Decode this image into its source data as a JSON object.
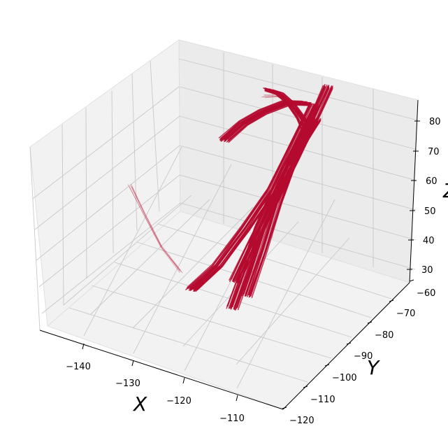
{
  "chart_data": {
    "type": "3d-line",
    "title": "",
    "xlabel": "X",
    "ylabel": "Y",
    "zlabel": "Z",
    "x_ticks": [
      "−140",
      "−130",
      "−120",
      "−110"
    ],
    "y_ticks": [
      "−120",
      "−110",
      "−100",
      "−90",
      "−80",
      "−70",
      "−60"
    ],
    "z_ticks": [
      "30",
      "40",
      "50",
      "60",
      "70",
      "80"
    ],
    "xlim": [
      -146,
      -105
    ],
    "ylim": [
      -122,
      -58
    ],
    "zlim": [
      26,
      86
    ],
    "grid": true,
    "color": "#b50a2f",
    "series": [
      {
        "points": [
          [
            -116,
            -62,
            84
          ],
          [
            -117,
            -66,
            76
          ],
          [
            -119,
            -70,
            64
          ],
          [
            -121,
            -75,
            52
          ],
          [
            -123,
            -79,
            41
          ],
          [
            -125,
            -84,
            29
          ]
        ]
      },
      {
        "points": [
          [
            -118,
            -64,
            78
          ],
          [
            -120,
            -69,
            66
          ],
          [
            -122,
            -74,
            54
          ],
          [
            -125,
            -79,
            43
          ],
          [
            -128,
            -85,
            33
          ],
          [
            -131,
            -90,
            27
          ]
        ]
      },
      {
        "points": [
          [
            -113,
            -75,
            84
          ],
          [
            -115,
            -78,
            76
          ],
          [
            -117,
            -82,
            66
          ],
          [
            -119,
            -87,
            52
          ],
          [
            -120,
            -91,
            40
          ],
          [
            -121,
            -95,
            30
          ]
        ]
      },
      {
        "points": [
          [
            -114,
            -74,
            82
          ],
          [
            -116,
            -78,
            72
          ],
          [
            -117,
            -83,
            60
          ],
          [
            -118,
            -88,
            46
          ],
          [
            -119,
            -93,
            34
          ]
        ]
      },
      {
        "points": [
          [
            -126,
            -66,
            80
          ],
          [
            -123,
            -68,
            82
          ],
          [
            -120,
            -70,
            82
          ],
          [
            -117,
            -72,
            80
          ],
          [
            -115,
            -74,
            78
          ]
        ]
      },
      {
        "points": [
          [
            -133,
            -70,
            62
          ],
          [
            -130,
            -68,
            68
          ],
          [
            -127,
            -66,
            72
          ],
          [
            -123,
            -64,
            76
          ],
          [
            -119,
            -64,
            78
          ]
        ]
      },
      {
        "points": [
          [
            -141,
            -95,
            60
          ],
          [
            -139,
            -93,
            50
          ],
          [
            -136,
            -92,
            40
          ],
          [
            -133,
            -90,
            32
          ]
        ]
      },
      {
        "points": [
          [
            -124,
            -73,
            84
          ],
          [
            -122,
            -71,
            84
          ],
          [
            -119,
            -71,
            82
          ],
          [
            -116,
            -72,
            80
          ]
        ]
      }
    ]
  }
}
